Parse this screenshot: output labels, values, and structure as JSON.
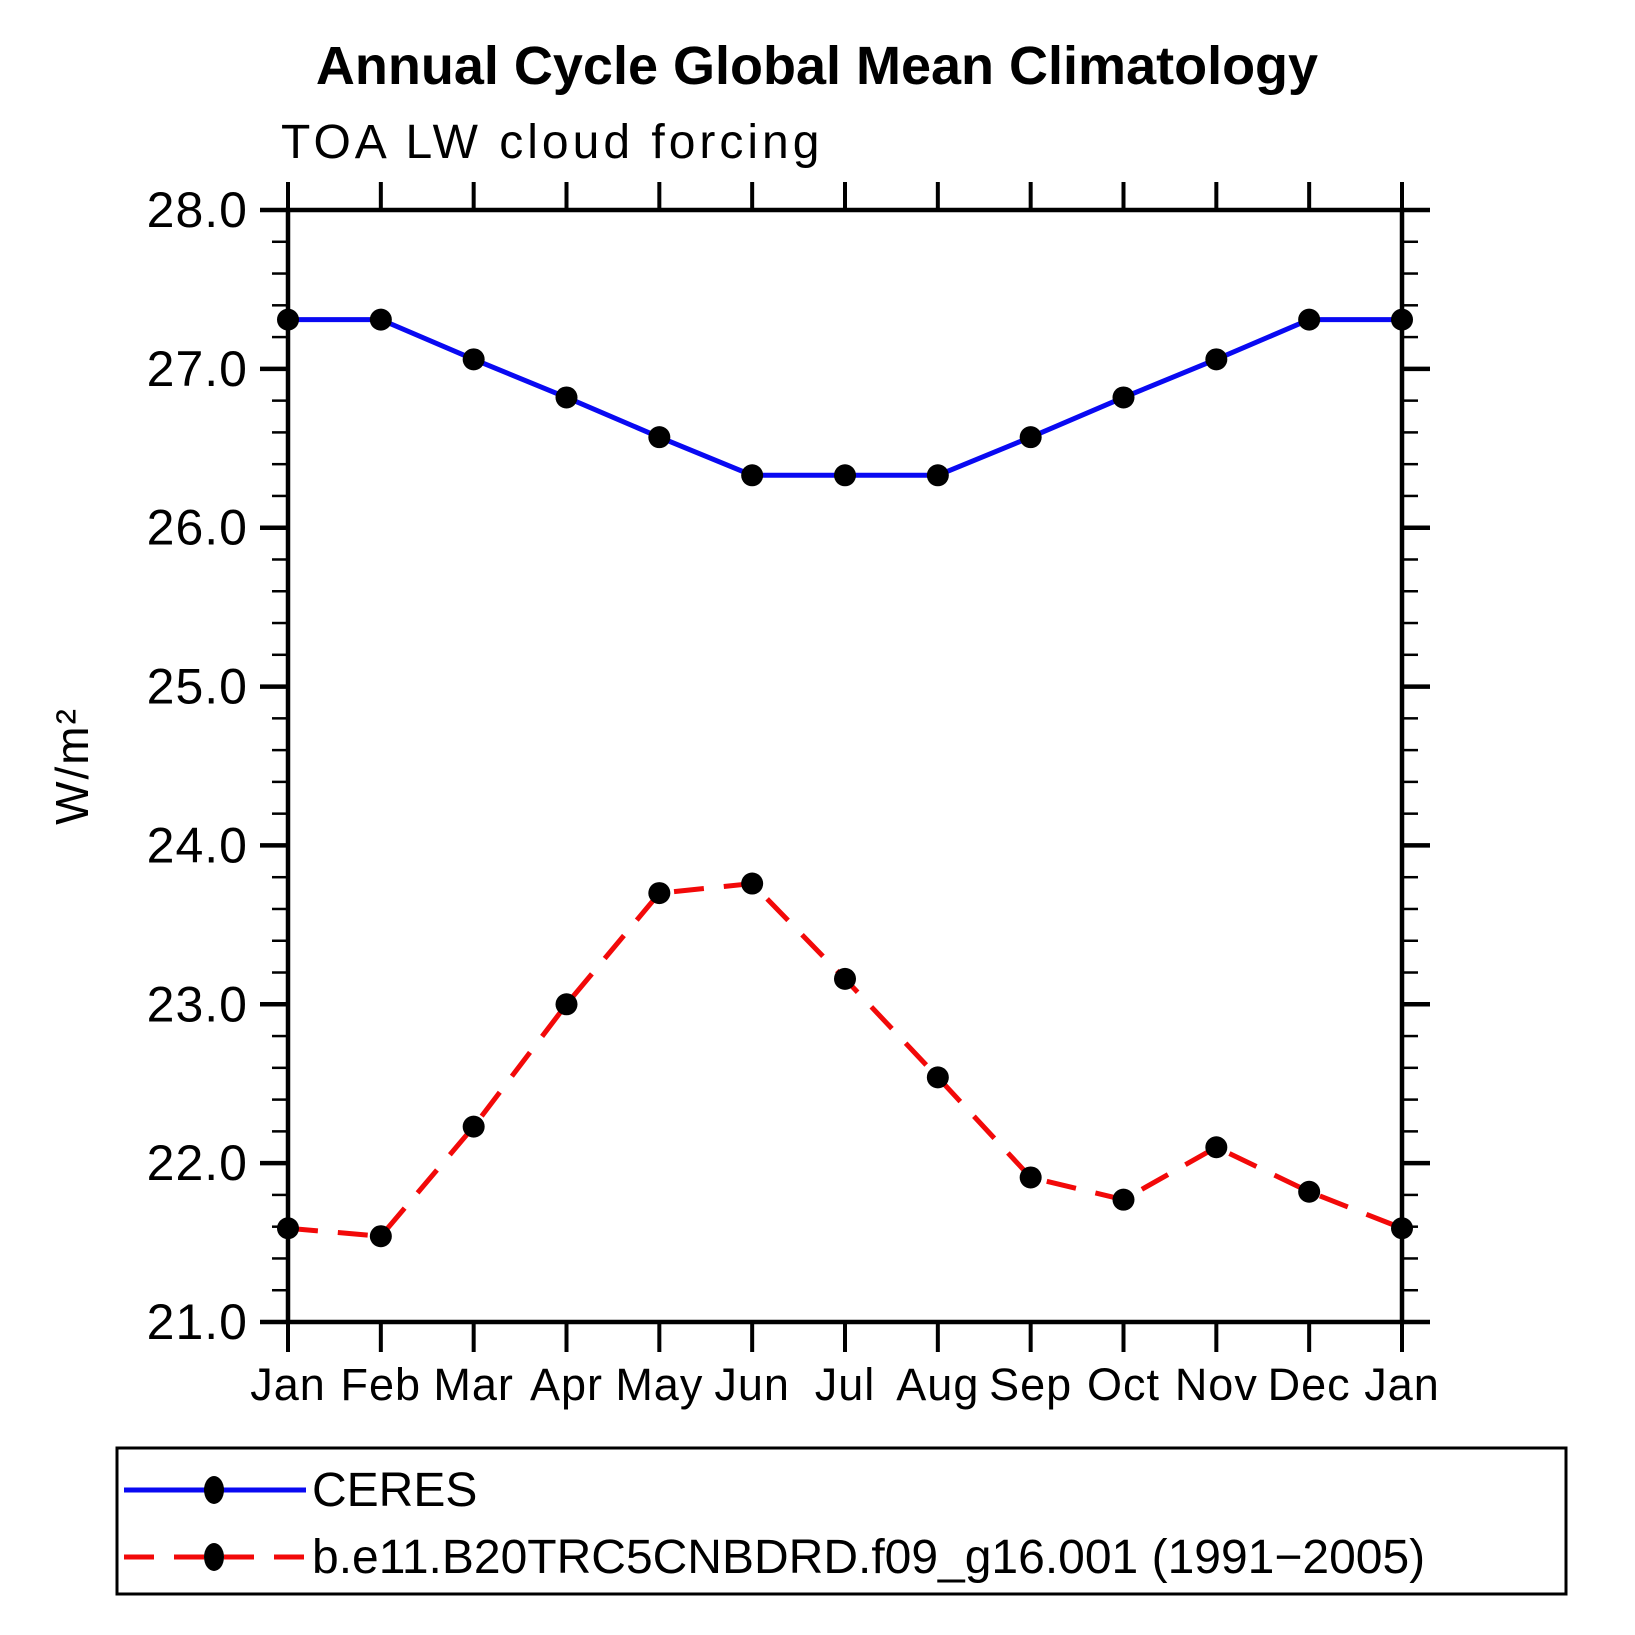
{
  "chart_data": {
    "type": "line",
    "title": "Annual Cycle Global Mean Climatology",
    "subtitle": "TOA LW cloud forcing",
    "ylabel": "W/m²",
    "xlabel": "",
    "x_categories": [
      "Jan",
      "Feb",
      "Mar",
      "Apr",
      "May",
      "Jun",
      "Jul",
      "Aug",
      "Sep",
      "Oct",
      "Nov",
      "Dec",
      "Jan"
    ],
    "ylim": [
      21.0,
      28.0
    ],
    "ytick_labels": [
      "21.0",
      "22.0",
      "23.0",
      "24.0",
      "25.0",
      "26.0",
      "27.0",
      "28.0"
    ],
    "ytick_major_step": 1.0,
    "ytick_minor_step": 0.2,
    "grid": false,
    "legend_position": "bottom",
    "series": [
      {
        "name": "CERES",
        "color": "#0909f2",
        "line_style": "solid",
        "marker": "filled-circle",
        "marker_color": "#000000",
        "values": [
          27.31,
          27.31,
          27.06,
          26.82,
          26.57,
          26.33,
          26.33,
          26.33,
          26.57,
          26.82,
          27.06,
          27.31,
          27.31
        ]
      },
      {
        "name": "b.e11.B20TRC5CNBDRD.f09_g16.001 (1991−2005)",
        "color": "#f20909",
        "line_style": "dashed",
        "marker": "filled-circle",
        "marker_color": "#000000",
        "values": [
          21.59,
          21.54,
          22.23,
          23.0,
          23.7,
          23.76,
          23.16,
          22.54,
          21.91,
          21.77,
          22.1,
          21.82,
          21.59
        ]
      }
    ]
  },
  "colors": {
    "axis": "#000000",
    "marker": "#000000",
    "background": "#ffffff",
    "ceres_line": "#0909f2",
    "model_line": "#f20909"
  }
}
